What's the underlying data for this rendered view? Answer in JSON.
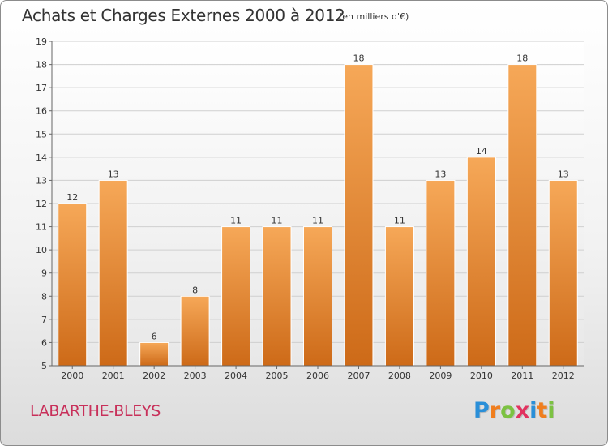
{
  "header": {
    "title": "Achats et Charges Externes 2000 à 2012",
    "subtitle": "(en milliers d'€)"
  },
  "footer": {
    "commune": "LABARTHE-BLEYS",
    "logo_letters": [
      "P",
      "r",
      "o",
      "x",
      "i",
      "t",
      "i"
    ],
    "logo_colors": [
      "#2a8fd8",
      "#f07e1e",
      "#7cc242",
      "#e2325f",
      "#2a8fd8",
      "#f07e1e",
      "#7cc242"
    ]
  },
  "colors": {
    "bar_top": "#f6a858",
    "bar_bottom": "#cd6a18",
    "grid": "#cfcfcf",
    "axis": "#666666"
  },
  "chart_data": {
    "type": "bar",
    "title": "Achats et Charges Externes 2000 à 2012",
    "subtitle": "(en milliers d'€)",
    "xlabel": "",
    "ylabel": "",
    "categories": [
      "2000",
      "2001",
      "2002",
      "2003",
      "2004",
      "2005",
      "2006",
      "2007",
      "2008",
      "2009",
      "2010",
      "2011",
      "2012"
    ],
    "values": [
      12,
      13,
      6,
      8,
      11,
      11,
      11,
      18,
      11,
      13,
      14,
      18,
      13
    ],
    "ylim": [
      5,
      19
    ],
    "yticks": [
      5,
      6,
      7,
      8,
      9,
      10,
      11,
      12,
      13,
      14,
      15,
      16,
      17,
      18,
      19
    ],
    "grid": true,
    "legend": "none"
  }
}
